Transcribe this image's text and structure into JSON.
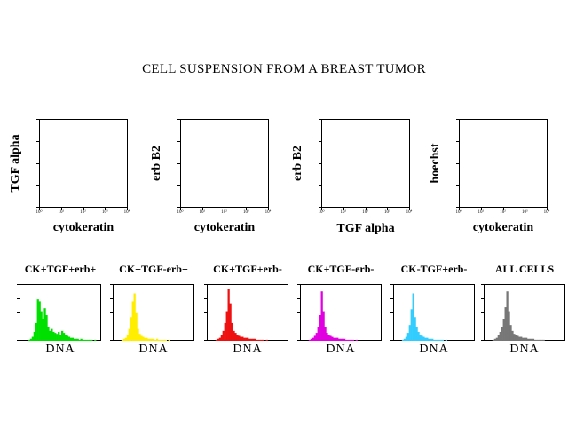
{
  "title": "CELL SUSPENSION FROM A BREAST TUMOR",
  "chart_data": [
    {
      "type": "scatter",
      "xlabel": "cytokeratin",
      "ylabel": "TGF alpha",
      "x_scale": "log",
      "x_ticks": [
        "10⁰",
        "10¹",
        "10²",
        "10³",
        "10⁴"
      ],
      "points": []
    },
    {
      "type": "scatter",
      "xlabel": "cytokeratin",
      "ylabel": "erb B2",
      "x_scale": "log",
      "x_ticks": [
        "10⁰",
        "10¹",
        "10²",
        "10³",
        "10⁴"
      ],
      "points": []
    },
    {
      "type": "scatter",
      "xlabel": "TGF alpha",
      "ylabel": "erb B2",
      "x_scale": "log",
      "x_ticks": [
        "10⁰",
        "10¹",
        "10²",
        "10³",
        "10⁴"
      ],
      "points": []
    },
    {
      "type": "scatter",
      "xlabel": "cytokeratin",
      "ylabel": "hoechst",
      "x_scale": "log",
      "x_ticks": [
        "10⁰",
        "10¹",
        "10²",
        "10³",
        "10⁴"
      ],
      "points": []
    },
    {
      "type": "histogram",
      "title": "CK+TGF+erb+",
      "xlabel": "DNA",
      "color": "#00e000",
      "values": [
        0,
        0,
        0,
        0,
        1,
        2,
        4,
        9,
        18,
        42,
        40,
        30,
        22,
        33,
        26,
        14,
        10,
        12,
        9,
        8,
        7,
        9,
        6,
        10,
        8,
        6,
        5,
        4,
        3,
        3,
        2,
        2,
        2,
        1,
        2,
        1,
        1,
        1,
        1,
        1,
        1,
        0,
        1,
        0,
        0,
        0
      ]
    },
    {
      "type": "histogram",
      "title": "CK+TGF-erb+",
      "xlabel": "DNA",
      "color": "#ffee00",
      "values": [
        0,
        0,
        0,
        0,
        1,
        2,
        3,
        6,
        12,
        24,
        40,
        48,
        28,
        12,
        7,
        5,
        4,
        3,
        3,
        2,
        2,
        2,
        2,
        1,
        2,
        1,
        1,
        1,
        1,
        1,
        0,
        1,
        0,
        0,
        0,
        0,
        0,
        0,
        0,
        0,
        0,
        0,
        0,
        0,
        0,
        0
      ]
    },
    {
      "type": "histogram",
      "title": "CK+TGF+erb-",
      "xlabel": "DNA",
      "color": "#ee1111",
      "values": [
        0,
        0,
        0,
        0,
        1,
        2,
        3,
        6,
        10,
        18,
        30,
        52,
        38,
        18,
        10,
        8,
        6,
        5,
        4,
        4,
        3,
        3,
        3,
        2,
        2,
        2,
        2,
        1,
        1,
        1,
        1,
        1,
        0,
        1,
        0,
        0,
        0,
        0,
        0,
        0,
        0,
        0,
        0,
        0,
        0,
        0
      ]
    },
    {
      "type": "histogram",
      "title": "CK+TGF-erb-",
      "xlabel": "DNA",
      "color": "#e000e0",
      "values": [
        0,
        0,
        0,
        0,
        1,
        2,
        3,
        5,
        8,
        14,
        26,
        50,
        30,
        14,
        8,
        6,
        5,
        4,
        3,
        3,
        3,
        2,
        2,
        2,
        2,
        1,
        1,
        1,
        1,
        1,
        0,
        1,
        0,
        0,
        0,
        0,
        0,
        0,
        0,
        0,
        0,
        0,
        0,
        0,
        0,
        0
      ]
    },
    {
      "type": "histogram",
      "title": "CK-TGF+erb-",
      "xlabel": "DNA",
      "color": "#33ccff",
      "values": [
        0,
        0,
        0,
        0,
        1,
        2,
        4,
        8,
        16,
        32,
        48,
        24,
        14,
        9,
        6,
        5,
        4,
        3,
        3,
        2,
        2,
        2,
        1,
        1,
        1,
        1,
        1,
        1,
        0,
        1,
        0,
        0,
        0,
        0,
        0,
        0,
        0,
        0,
        0,
        0,
        0,
        0,
        0,
        0,
        0,
        0
      ]
    },
    {
      "type": "histogram",
      "title": "ALL CELLS",
      "xlabel": "DNA",
      "color": "#777777",
      "values": [
        0,
        0,
        0,
        0,
        1,
        2,
        3,
        6,
        9,
        14,
        22,
        34,
        50,
        30,
        16,
        10,
        7,
        6,
        5,
        4,
        4,
        3,
        3,
        3,
        2,
        2,
        2,
        2,
        1,
        1,
        1,
        1,
        1,
        1,
        0,
        0,
        0,
        0,
        0,
        0,
        0,
        0,
        0,
        0,
        0,
        0
      ]
    }
  ]
}
